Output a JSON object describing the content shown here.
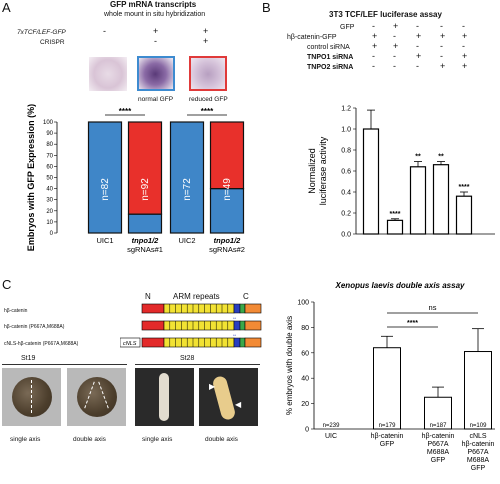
{
  "panels": {
    "A": {
      "letter": "A",
      "title1": "GFP mRNA transcripts",
      "title2": "whole mount in situ hybridization",
      "rows": [
        {
          "label": "7xTCF/LEF-GFP",
          "vals": [
            "-",
            "+",
            "+"
          ]
        },
        {
          "label": "CRISPR",
          "vals": [
            "",
            "-",
            "+"
          ]
        }
      ],
      "embryo_labels": [
        "normal GFP",
        "reduced GFP"
      ],
      "chart_data": {
        "type": "bar",
        "stacked": true,
        "ylabel": "Embryos with GFP Expression (%)",
        "ylim": [
          0,
          100
        ],
        "yticks": [
          "0",
          "10",
          "20",
          "30",
          "40",
          "50",
          "60",
          "70",
          "80",
          "90",
          "100"
        ],
        "categories": [
          "UIC1",
          "tnpo1/2 sgRNAs#1",
          "UIC2",
          "tnpo1/2 sgRNAs#2"
        ],
        "series": [
          {
            "name": "normal GFP",
            "color": "#3f86c8",
            "values": [
              100,
              17,
              100,
              40
            ]
          },
          {
            "name": "reduced GFP",
            "color": "#e8302b",
            "values": [
              0,
              83,
              0,
              60
            ]
          }
        ],
        "n_labels": [
          "n=82",
          "n=92",
          "n=72",
          "n=49"
        ],
        "sig": [
          "****",
          "****"
        ]
      }
    },
    "B": {
      "letter": "B",
      "title": "3T3 TCF/LEF luciferase assay",
      "rows": [
        {
          "label": "GFP",
          "vals": [
            "-",
            "+",
            "-",
            "-",
            "-"
          ]
        },
        {
          "label": "hβ-catenin-GFP",
          "vals": [
            "+",
            "-",
            "+",
            "+",
            "+"
          ]
        },
        {
          "label": "control siRNA",
          "vals": [
            "+",
            "+",
            "-",
            "-",
            "-"
          ]
        },
        {
          "label": "TNPO1 siRNA",
          "vals": [
            "-",
            "-",
            "+",
            "-",
            "+"
          ]
        },
        {
          "label": "TNPO2 siRNA",
          "vals": [
            "-",
            "-",
            "-",
            "+",
            "+"
          ]
        }
      ],
      "chart_data": {
        "type": "bar",
        "ylabel": "Normalized luciferase activity",
        "ylim": [
          0,
          1.2
        ],
        "yticks": [
          "0.0",
          "0.2",
          "0.4",
          "0.6",
          "0.8",
          "1.0",
          "1.2"
        ],
        "values": [
          1.0,
          0.13,
          0.64,
          0.66,
          0.36
        ],
        "errors": [
          0.18,
          0.015,
          0.05,
          0.03,
          0.04
        ],
        "sig": [
          "",
          "****",
          "**",
          "**",
          "****"
        ]
      }
    },
    "C": {
      "letter": "C",
      "domain_labels": [
        "N",
        "ARM repeats",
        "C"
      ],
      "constructs": [
        "hβ-catenin",
        "hβ-catenin (P667A,M688A)",
        "cNLS-hβ-catenin (P667A,M688A)"
      ],
      "nls_tag": "cNLS",
      "stage_labels": [
        "St19",
        "St28"
      ],
      "image_captions": [
        "single axis",
        "double axis",
        "single axis",
        "double axis"
      ],
      "chart_data": {
        "type": "bar",
        "title": "Xenopus laevis double axis assay",
        "ylabel": "% embryos with double axis",
        "ylim": [
          0,
          100
        ],
        "yticks": [
          "0",
          "20",
          "40",
          "60",
          "80",
          "100"
        ],
        "categories": [
          "UIC",
          "hβ-catenin GFP",
          "hβ-catenin P667A M688A GFP",
          "cNLS hβ-catenin P667A M688A GFP"
        ],
        "values": [
          0,
          64,
          25,
          61
        ],
        "errors": [
          0,
          9,
          8,
          18
        ],
        "n_labels": [
          "n=239",
          "n=179",
          "n=187",
          "n=109"
        ],
        "sig": [
          "****",
          "ns"
        ]
      }
    }
  }
}
